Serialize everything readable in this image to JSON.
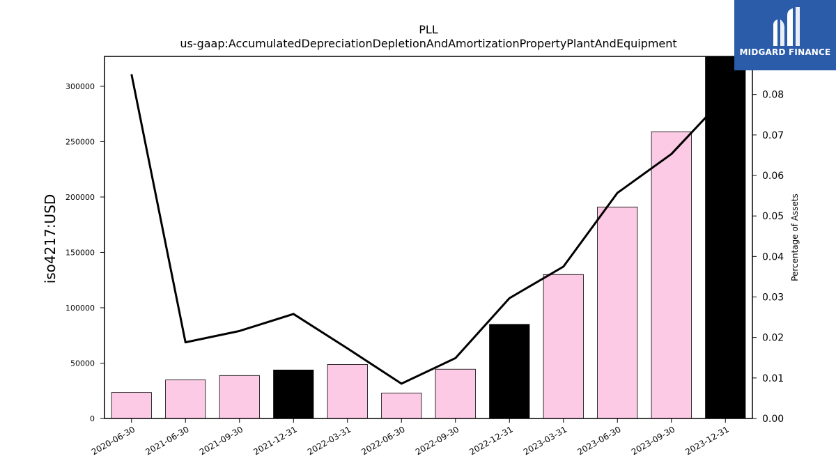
{
  "logo": {
    "text": "MIDGARD FINANCE",
    "icon": "midgard-finance-logo-icon",
    "background": "#2a5caa"
  },
  "chart_data": {
    "type": "bar",
    "title": "PLL",
    "subtitle": "us-gaap:AccumulatedDepreciationDepletionAndAmortizationPropertyPlantAndEquipment",
    "ylabel": "iso4217:USD",
    "y2label": "Percentage of Assets",
    "categories": [
      "2020-06-30",
      "2021-06-30",
      "2021-09-30",
      "2021-12-31",
      "2022-03-31",
      "2022-06-30",
      "2022-09-30",
      "2022-12-31",
      "2023-03-31",
      "2023-06-30",
      "2023-09-30",
      "2023-12-31"
    ],
    "series": [
      {
        "type": "bar",
        "values": [
          23500,
          34800,
          38800,
          43800,
          48800,
          23000,
          44500,
          85000,
          130000,
          191000,
          259000,
          327000
        ],
        "colors": [
          "#fccae4",
          "#fccae4",
          "#fccae4",
          "#000000",
          "#fccae4",
          "#fccae4",
          "#fccae4",
          "#000000",
          "#fccae4",
          "#fccae4",
          "#fccae4",
          "#000000"
        ]
      },
      {
        "type": "line",
        "axis": "right",
        "color": "#000000",
        "values": [
          0.085,
          0.0188,
          0.0216,
          0.0258,
          0.0173,
          0.0086,
          0.0149,
          0.0297,
          0.0375,
          0.0557,
          0.0653,
          0.0795
        ]
      }
    ],
    "ylim": [
      0,
      327000
    ],
    "y2lim": [
      0,
      0.0894
    ],
    "yticks": [
      0,
      50000,
      100000,
      150000,
      200000,
      250000,
      300000
    ],
    "y2ticks": [
      "0.00",
      "0.01",
      "0.02",
      "0.03",
      "0.04",
      "0.05",
      "0.06",
      "0.07",
      "0.08"
    ],
    "grid": false
  }
}
